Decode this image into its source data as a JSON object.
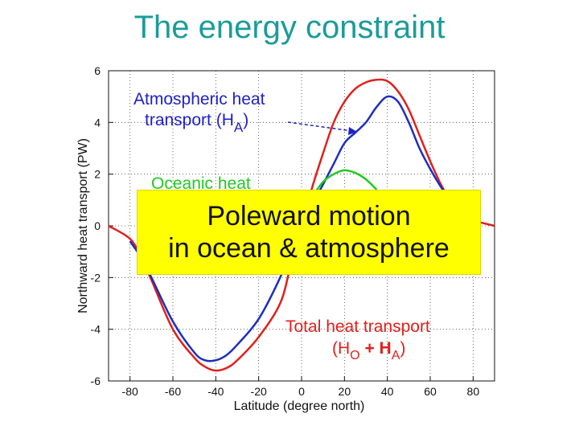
{
  "slide": {
    "title": "The energy constraint",
    "callout_line1": "Poleward motion",
    "callout_line2": "in ocean & atmosphere"
  },
  "colors": {
    "title": "#1a9c9a",
    "total": "#e0201c",
    "atmospheric": "#1c2fc0",
    "oceanic": "#22c922",
    "atm_label": "#2020c8",
    "total_label": "#e0201c",
    "ocean_label": "#22c922",
    "callout_bg": "#ffff00"
  },
  "chart_data": {
    "type": "line",
    "xlabel": "Latitude (degree north)",
    "ylabel": "Northward heat transport (PW)",
    "xlim": [
      -90,
      90
    ],
    "ylim": [
      -6,
      6
    ],
    "xticks": [
      -80,
      -60,
      -40,
      -20,
      0,
      20,
      40,
      60,
      80
    ],
    "yticks": [
      -6,
      -4,
      -2,
      0,
      2,
      4,
      6
    ],
    "grid": "dotted",
    "series": [
      {
        "key": "total",
        "x": [
          -90,
          -80,
          -75,
          -70,
          -60,
          -50,
          -45,
          -40,
          -35,
          -30,
          -20,
          -10,
          -5,
          0,
          5,
          10,
          15,
          20,
          25,
          30,
          35,
          40,
          45,
          50,
          55,
          60,
          65,
          70,
          75,
          80,
          85,
          90
        ],
        "y": [
          0,
          -0.5,
          -1.2,
          -2.1,
          -4.0,
          -5.1,
          -5.45,
          -5.6,
          -5.5,
          -5.2,
          -4.3,
          -3.0,
          -1.5,
          0.0,
          1.5,
          2.8,
          4.0,
          4.8,
          5.3,
          5.55,
          5.65,
          5.6,
          5.2,
          4.5,
          3.5,
          2.5,
          1.6,
          0.9,
          0.4,
          0.2,
          0.1,
          0
        ]
      },
      {
        "key": "atmospheric",
        "x": [
          -80,
          -75,
          -70,
          -60,
          -50,
          -45,
          -40,
          -35,
          -30,
          -20,
          -10,
          0,
          10,
          15,
          20,
          25,
          30,
          35,
          40,
          45,
          50,
          55,
          60,
          65,
          70
        ],
        "y": [
          -0.6,
          -1.2,
          -2.0,
          -3.7,
          -4.9,
          -5.2,
          -5.2,
          -5.0,
          -4.6,
          -3.6,
          -2.0,
          0.0,
          1.6,
          2.4,
          3.2,
          3.6,
          4.0,
          4.6,
          5.0,
          4.8,
          4.0,
          3.0,
          2.2,
          1.5,
          0.9
        ]
      },
      {
        "key": "oceanic",
        "x": [
          -5,
          0,
          5,
          10,
          15,
          20,
          25,
          30,
          35
        ],
        "y": [
          -0.6,
          0.3,
          1.1,
          1.7,
          2.0,
          2.15,
          2.05,
          1.8,
          1.4
        ]
      }
    ],
    "annotations": {
      "atm_line1": "Atmospheric heat",
      "atm_line2": "transport (H",
      "atm_sub": "A",
      "atm_close": ")",
      "ocean_line1": "Oceanic heat",
      "total_line1": "Total heat transport",
      "total_open": "(H",
      "total_sub_o": "O",
      "total_plus": " + H",
      "total_sub_a": "A",
      "total_close": ")"
    }
  }
}
